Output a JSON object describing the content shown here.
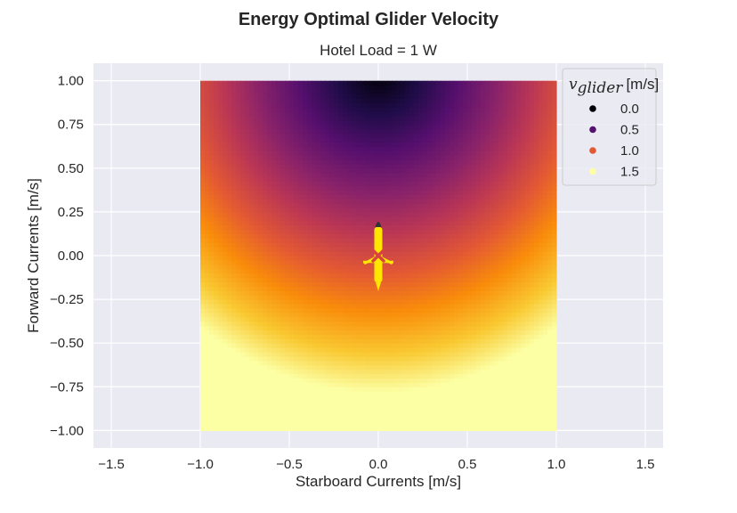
{
  "chart_data": {
    "type": "heatmap",
    "suptitle": "Energy Optimal Glider Velocity",
    "title": "Hotel Load = 1 W",
    "xlabel": "Starboard Currents [m/s]",
    "ylabel": "Forward Currents [m/s]",
    "xlim": [
      -1.6,
      1.6
    ],
    "ylim": [
      -1.1,
      1.1
    ],
    "data_extent": {
      "x": [
        -1.0,
        1.0
      ],
      "y": [
        -1.0,
        1.0
      ]
    },
    "xticks": [
      -1.5,
      -1.0,
      -0.5,
      0.0,
      0.5,
      1.0,
      1.5
    ],
    "xtick_labels": [
      "−1.5",
      "−1.0",
      "−0.5",
      "0.0",
      "0.5",
      "1.0",
      "1.5"
    ],
    "yticks": [
      1.0,
      0.75,
      0.5,
      0.25,
      0.0,
      -0.25,
      -0.5,
      -0.75,
      -1.0
    ],
    "ytick_labels": [
      "1.00",
      "0.75",
      "0.50",
      "0.25",
      "0.00",
      "−0.25",
      "−0.50",
      "−0.75",
      "−1.00"
    ],
    "grid": true,
    "colormap": "inferno",
    "color_range": [
      0.0,
      1.5
    ],
    "legend": {
      "placement": "top-right",
      "title_symbol": "v",
      "title_subscript": "glider",
      "title_unit": "[m/s]",
      "entries": [
        {
          "label": "0.0",
          "value": 0.0,
          "color": "#000004"
        },
        {
          "label": "0.5",
          "value": 0.5,
          "color": "#56106e"
        },
        {
          "label": "1.0",
          "value": 1.0,
          "color": "#e35933"
        },
        {
          "label": "1.5",
          "value": 1.5,
          "color": "#fcffa4"
        }
      ]
    },
    "glider_marker": {
      "x": 0.0,
      "y": 0.0,
      "marker": "x",
      "color": "#d9433f",
      "body_color": "#ffe600",
      "nose_color": "#333333"
    }
  }
}
